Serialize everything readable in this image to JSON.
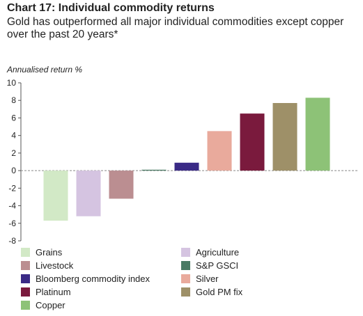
{
  "header": {
    "title": "Chart 17: Individual commodity returns",
    "subtitle": "Gold has outperformed all major individual commodities except copper over the past 20 years*"
  },
  "chart_data": {
    "type": "bar",
    "title": "Chart 17: Individual commodity returns",
    "subtitle": "Gold has outperformed all major individual commodities except copper over the past 20 years*",
    "ylabel": "Annualised return %",
    "xlabel": "",
    "ylim": [
      -8,
      10
    ],
    "yticks": [
      -8,
      -6,
      -4,
      -2,
      0,
      2,
      4,
      6,
      8,
      10
    ],
    "grid": false,
    "legend_position": "bottom",
    "categories": [
      "Grains",
      "Agriculture",
      "Livestock",
      "S&P GSCI",
      "Bloomberg commodity index",
      "Silver",
      "Platinum",
      "Gold PM fix",
      "Copper"
    ],
    "values": [
      -5.7,
      -5.2,
      -3.2,
      0.1,
      0.9,
      4.5,
      6.5,
      7.7,
      8.3
    ],
    "colors": [
      "#d2e9c6",
      "#d5c4e1",
      "#bb8e91",
      "#4a7a64",
      "#3a2a86",
      "#e9aa9c",
      "#7a1a3d",
      "#9e9068",
      "#8dc277"
    ]
  }
}
